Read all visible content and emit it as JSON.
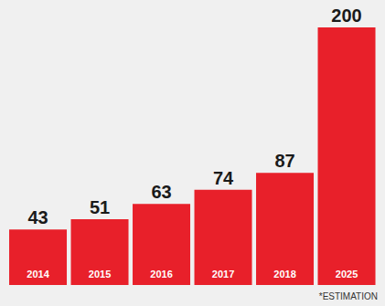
{
  "chart_data": {
    "type": "bar",
    "categories": [
      "2014",
      "2015",
      "2016",
      "2017",
      "2018",
      "2025"
    ],
    "values": [
      43,
      51,
      63,
      74,
      87,
      200
    ],
    "color": "#e8202a",
    "ylim": [
      0,
      200
    ],
    "data_labels": true,
    "tick_labels": false,
    "grid": false,
    "annotation": "*ESTIMATION"
  }
}
